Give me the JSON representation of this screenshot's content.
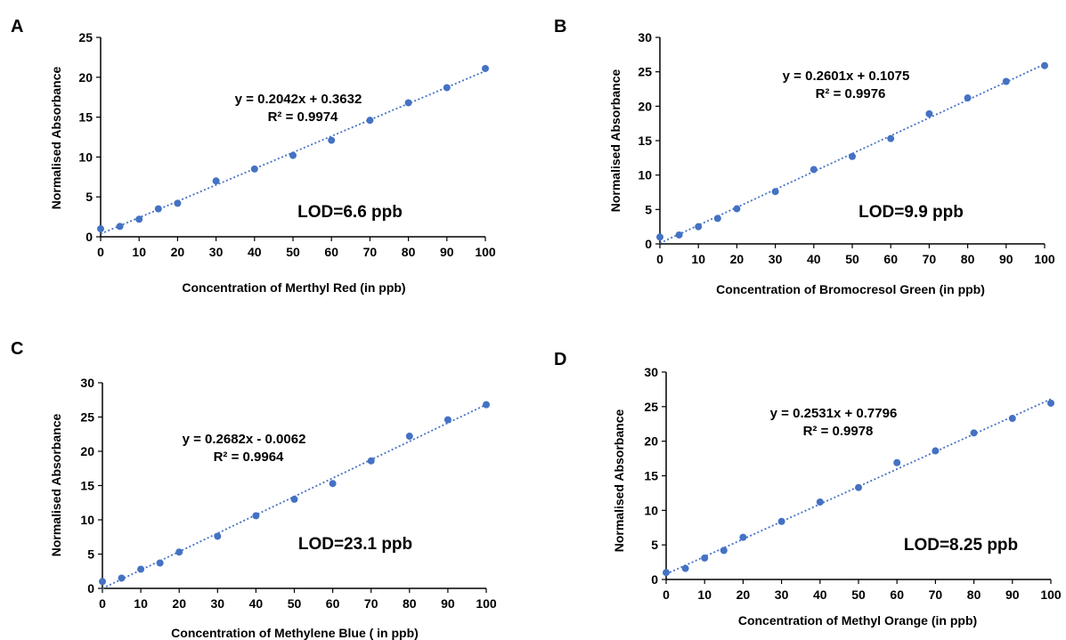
{
  "colors": {
    "points": "#4472c4",
    "trend": "#4472c4",
    "axis": "#000000"
  },
  "chart_data": [
    {
      "panel_label": "A",
      "type": "scatter",
      "xlabel": "Concentration of Merthyl Red (in ppb)",
      "ylabel": "Normalised Absorbance",
      "xlim": [
        0,
        100
      ],
      "ylim": [
        0,
        25
      ],
      "x_ticks": [
        0,
        10,
        20,
        30,
        40,
        50,
        60,
        70,
        80,
        90,
        100
      ],
      "y_ticks": [
        0,
        5,
        10,
        15,
        20,
        25
      ],
      "grid": false,
      "trendline": {
        "slope": 0.2042,
        "intercept": 0.3632,
        "style": "dotted"
      },
      "equation": "y = 0.2042x + 0.3632",
      "r_squared": "R² = 0.9974",
      "lod": "LOD=6.6 ppb",
      "points": [
        [
          0,
          1.0
        ],
        [
          5,
          1.3
        ],
        [
          10,
          2.2
        ],
        [
          15,
          3.5
        ],
        [
          20,
          4.2
        ],
        [
          30,
          7.0
        ],
        [
          40,
          8.5
        ],
        [
          50,
          10.2
        ],
        [
          60,
          12.1
        ],
        [
          70,
          14.6
        ],
        [
          80,
          16.8
        ],
        [
          90,
          18.7
        ],
        [
          100,
          21.1
        ]
      ]
    },
    {
      "panel_label": "B",
      "type": "scatter",
      "xlabel": "Concentration of Bromocresol Green (in ppb)",
      "ylabel": "Normalised Absorbance",
      "xlim": [
        0,
        100
      ],
      "ylim": [
        0,
        30
      ],
      "x_ticks": [
        0,
        10,
        20,
        30,
        40,
        50,
        60,
        70,
        80,
        90,
        100
      ],
      "y_ticks": [
        0,
        5,
        10,
        15,
        20,
        25,
        30
      ],
      "grid": false,
      "trendline": {
        "slope": 0.2601,
        "intercept": 0.1075,
        "style": "dotted"
      },
      "equation": "y = 0.2601x + 0.1075",
      "r_squared": "R² = 0.9976",
      "lod": "LOD=9.9 ppb",
      "points": [
        [
          0,
          1.0
        ],
        [
          5,
          1.3
        ],
        [
          10,
          2.5
        ],
        [
          15,
          3.7
        ],
        [
          20,
          5.1
        ],
        [
          30,
          7.6
        ],
        [
          40,
          10.8
        ],
        [
          50,
          12.7
        ],
        [
          60,
          15.3
        ],
        [
          70,
          18.9
        ],
        [
          80,
          21.2
        ],
        [
          90,
          23.6
        ],
        [
          100,
          25.9
        ]
      ]
    },
    {
      "panel_label": "C",
      "type": "scatter",
      "xlabel": "Concentration of Methylene Blue ( in ppb)",
      "ylabel": "Normalised Absorbance",
      "xlim": [
        0,
        100
      ],
      "ylim": [
        0,
        30
      ],
      "x_ticks": [
        0,
        10,
        20,
        30,
        40,
        50,
        60,
        70,
        80,
        90,
        100
      ],
      "y_ticks": [
        0,
        5,
        10,
        15,
        20,
        25,
        30
      ],
      "grid": false,
      "trendline": {
        "slope": 0.2682,
        "intercept": -0.0062,
        "style": "dotted"
      },
      "equation": "y = 0.2682x - 0.0062",
      "r_squared": "R² = 0.9964",
      "lod": "LOD=23.1 ppb",
      "points": [
        [
          0,
          1.0
        ],
        [
          5,
          1.5
        ],
        [
          10,
          2.8
        ],
        [
          15,
          3.7
        ],
        [
          20,
          5.3
        ],
        [
          30,
          7.6
        ],
        [
          40,
          10.6
        ],
        [
          50,
          13.0
        ],
        [
          60,
          15.3
        ],
        [
          70,
          18.6
        ],
        [
          80,
          22.2
        ],
        [
          90,
          24.6
        ],
        [
          100,
          26.8
        ]
      ]
    },
    {
      "panel_label": "D",
      "type": "scatter",
      "xlabel": "Concentration of Methyl Orange (in ppb)",
      "ylabel": "Normalised Absorbance",
      "xlim": [
        0,
        100
      ],
      "ylim": [
        0,
        30
      ],
      "x_ticks": [
        0,
        10,
        20,
        30,
        40,
        50,
        60,
        70,
        80,
        90,
        100
      ],
      "y_ticks": [
        0,
        5,
        10,
        15,
        20,
        25,
        30
      ],
      "grid": false,
      "trendline": {
        "slope": 0.2531,
        "intercept": 0.7796,
        "style": "dotted"
      },
      "equation": "y = 0.2531x + 0.7796",
      "r_squared": "R² = 0.9978",
      "lod": "LOD=8.25 ppb",
      "points": [
        [
          0,
          1.0
        ],
        [
          5,
          1.6
        ],
        [
          10,
          3.1
        ],
        [
          15,
          4.2
        ],
        [
          20,
          6.1
        ],
        [
          30,
          8.4
        ],
        [
          40,
          11.2
        ],
        [
          50,
          13.3
        ],
        [
          60,
          16.9
        ],
        [
          70,
          18.6
        ],
        [
          80,
          21.2
        ],
        [
          90,
          23.3
        ],
        [
          100,
          25.5
        ]
      ]
    }
  ]
}
